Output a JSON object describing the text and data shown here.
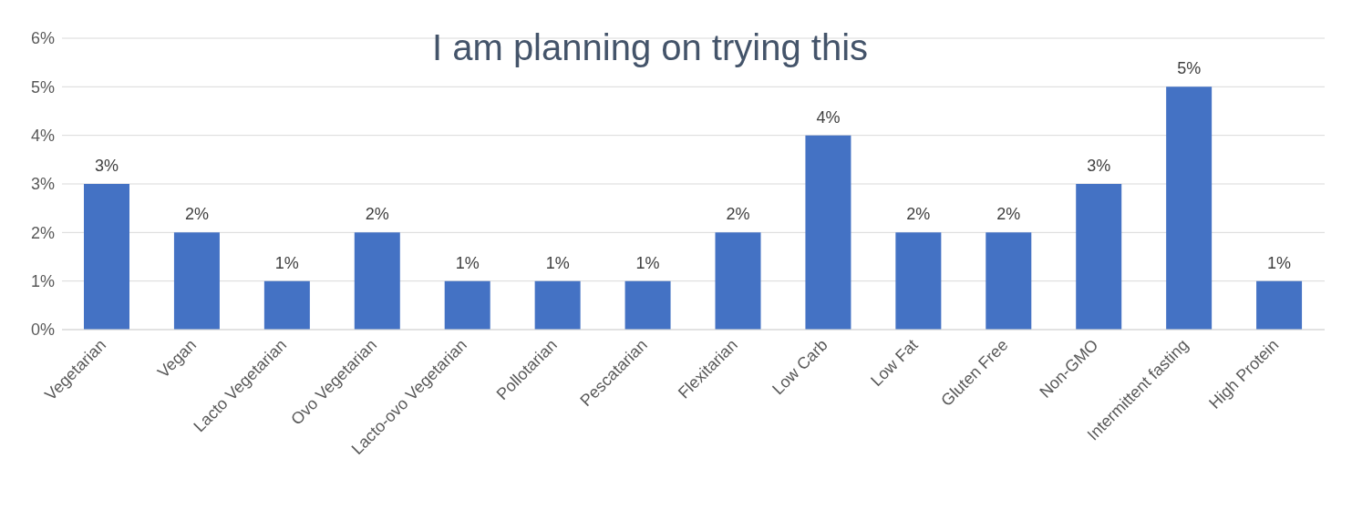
{
  "chart_data": {
    "type": "bar",
    "title": "I am planning on trying this",
    "categories": [
      "Vegetarian",
      "Vegan",
      "Lacto Vegetarian",
      "Ovo Vegetarian",
      "Lacto-ovo Vegetarian",
      "Pollotarian",
      "Pescatarian",
      "Flexitarian",
      "Low Carb",
      "Low Fat",
      "Gluten Free",
      "Non-GMO",
      "Intermittent fasting",
      "High Protein"
    ],
    "values": [
      3,
      2,
      1,
      2,
      1,
      1,
      1,
      2,
      4,
      2,
      2,
      3,
      5,
      1
    ],
    "value_labels": [
      "3%",
      "2%",
      "1%",
      "2%",
      "1%",
      "1%",
      "1%",
      "2%",
      "4%",
      "2%",
      "2%",
      "3%",
      "5%",
      "1%"
    ],
    "color": "#4472c4",
    "ylim": [
      0,
      6
    ],
    "yticks": [
      {
        "value": 0,
        "label": "0%"
      },
      {
        "value": 1,
        "label": "1%"
      },
      {
        "value": 2,
        "label": "2%"
      },
      {
        "value": 3,
        "label": "3%"
      },
      {
        "value": 4,
        "label": "4%"
      },
      {
        "value": 5,
        "label": "5%"
      },
      {
        "value": 6,
        "label": "6%"
      }
    ],
    "grid": "y",
    "legend": false
  }
}
